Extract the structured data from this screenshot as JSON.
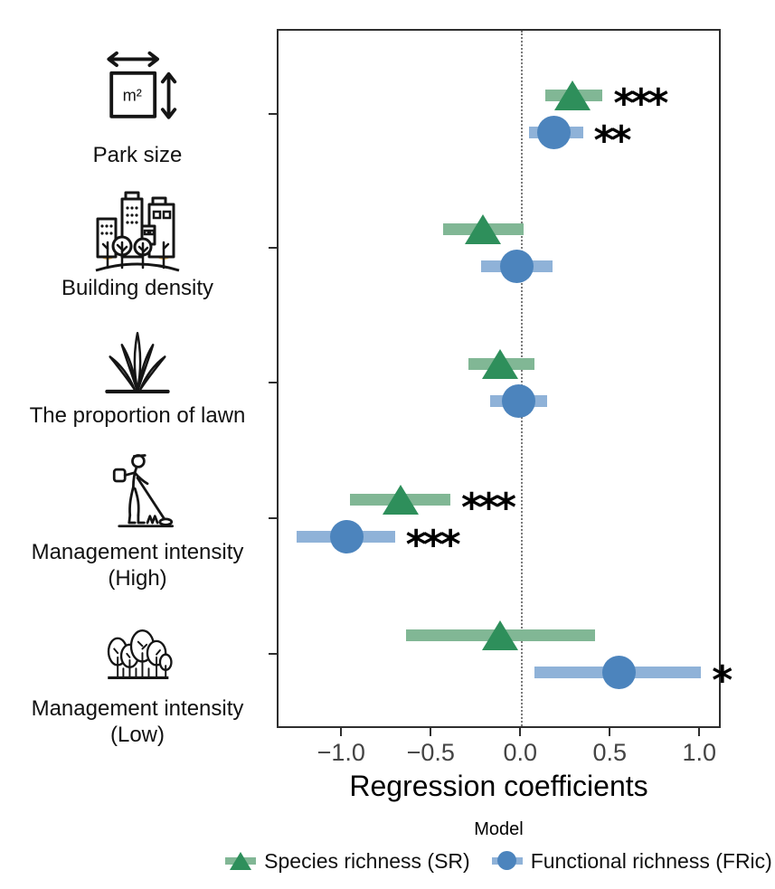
{
  "figure": {
    "xlabel": "Regression coefficients",
    "x_tick_labels": [
      "−1.0",
      "−0.5",
      "0.0",
      "0.5",
      "1.0"
    ],
    "x_tick_values": [
      -1.0,
      -0.5,
      0.0,
      0.5,
      1.0
    ]
  },
  "colors": {
    "sr_point": "#2e8f5b",
    "sr_bar": "#81b795",
    "fric_point": "#4c84bd",
    "fric_bar": "#8fb2d8",
    "tree_highlight": "#f0b95f",
    "panel_border": "#2e2e2e"
  },
  "predictors": [
    {
      "label_lines": [
        "Park size"
      ],
      "icon": "park-size-icon",
      "icon_text": "m²"
    },
    {
      "label_lines": [
        "Building density"
      ],
      "icon": "building-density-icon"
    },
    {
      "label_lines": [
        "The proportion of lawn"
      ],
      "icon": "lawn-icon"
    },
    {
      "label_lines": [
        "Management intensity",
        "(High)"
      ],
      "icon": "mowing-icon"
    },
    {
      "label_lines": [
        "Management intensity",
        "(Low)"
      ],
      "icon": "trees-icon"
    }
  ],
  "legend": {
    "title": "Model",
    "items": [
      {
        "label": "Species richness (SR)",
        "marker": "triangle",
        "color": "#2e8f5b",
        "bar_color": "#81b795"
      },
      {
        "label": "Functional richness (FRic)",
        "marker": "circle",
        "color": "#4c84bd",
        "bar_color": "#8fb2d8"
      }
    ]
  },
  "chart_data": {
    "type": "scatter",
    "subtype": "forest-coefficient-plot",
    "title": "",
    "xlabel": "Regression coefficients",
    "ylabel": "",
    "xlim": [
      -1.36,
      1.12
    ],
    "zero_reference_line": 0.0,
    "grid": false,
    "legend_position": "bottom",
    "categories": [
      "Park size",
      "Building density",
      "The proportion of lawn",
      "Management intensity (High)",
      "Management intensity (Low)"
    ],
    "series": [
      {
        "name": "Species richness (SR)",
        "marker": "triangle",
        "color": "#2e8f5b",
        "bar_color": "#81b795",
        "values": [
          0.29,
          -0.21,
          -0.11,
          -0.67,
          -0.11
        ],
        "ci_low": [
          0.14,
          -0.43,
          -0.29,
          -0.95,
          -0.64
        ],
        "ci_high": [
          0.46,
          0.02,
          0.08,
          -0.39,
          0.42
        ],
        "significance": [
          "***",
          "",
          "",
          "***",
          ""
        ]
      },
      {
        "name": "Functional richness (FRic)",
        "marker": "circle",
        "color": "#4c84bd",
        "bar_color": "#8fb2d8",
        "values": [
          0.19,
          -0.02,
          -0.01,
          -0.97,
          0.55
        ],
        "ci_low": [
          0.05,
          -0.22,
          -0.17,
          -1.25,
          0.08
        ],
        "ci_high": [
          0.35,
          0.18,
          0.15,
          -0.7,
          1.01
        ],
        "significance": [
          "**",
          "",
          "",
          "***",
          "*"
        ]
      }
    ]
  }
}
